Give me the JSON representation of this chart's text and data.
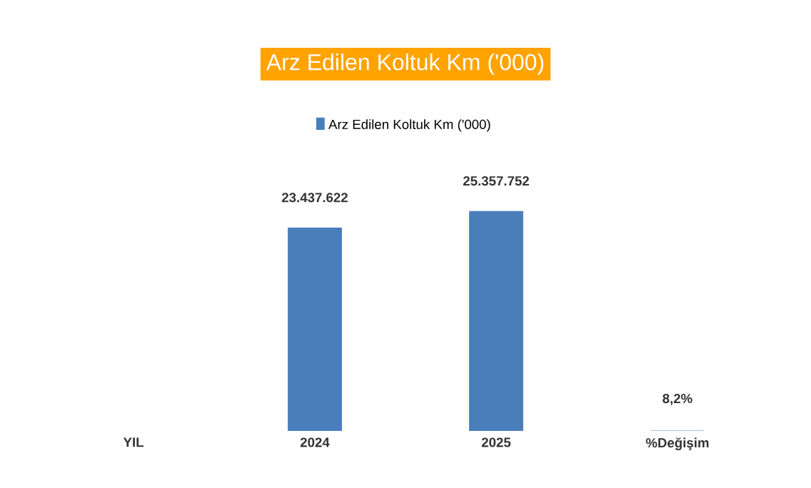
{
  "chart_data": {
    "type": "bar",
    "title": "Arz Edilen Koltuk Km ('000)",
    "categories": [
      "YIL",
      "2024",
      "2025",
      "%Değişim"
    ],
    "series": [
      {
        "name": "Arz Edilen Koltuk Km ('000)",
        "color": "#4a7ebb",
        "values": [
          null,
          23437622,
          25357752,
          8.2
        ],
        "value_labels": [
          null,
          "23.437.622",
          "25.357.752",
          "8,2%"
        ]
      }
    ],
    "legend": "top",
    "tick_labels": "x"
  }
}
